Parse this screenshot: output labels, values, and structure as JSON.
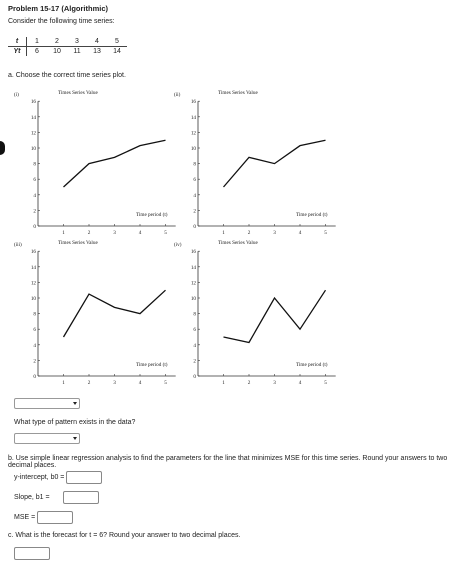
{
  "problem": {
    "title": "Problem 15-17 (Algorithmic)",
    "intro": "Consider the following time series:"
  },
  "series_table": {
    "t_label": "t",
    "y_label": "Yt",
    "t_values": [
      "1",
      "2",
      "3",
      "4",
      "5"
    ],
    "y_values": [
      "6",
      "10",
      "11",
      "13",
      "14"
    ]
  },
  "part_a": {
    "prompt": "a. Choose the correct time series plot.",
    "pattern_question": "What type of pattern exists in the data?"
  },
  "plots": [
    {
      "label": "(i)",
      "ylabel": "Times Series Value",
      "xlabel": "Time period (t)",
      "values": [
        5,
        8,
        8.8,
        10.3,
        11
      ]
    },
    {
      "label": "(ii)",
      "ylabel": "Times Series Value",
      "xlabel": "Time period (t)",
      "values": [
        5,
        8.8,
        8,
        10.3,
        11
      ]
    },
    {
      "label": "(iii)",
      "ylabel": "Times Series Value",
      "xlabel": "Time period (t)",
      "values": [
        5,
        10.5,
        8.8,
        8,
        11
      ]
    },
    {
      "label": "(iv)",
      "ylabel": "Times Series Value",
      "xlabel": "Time period (t)",
      "values": [
        5,
        4.3,
        10,
        6,
        11
      ]
    }
  ],
  "axis": {
    "y_ticks": [
      "0",
      "2",
      "4",
      "6",
      "8",
      "10",
      "12",
      "14",
      "16"
    ],
    "x_ticks": [
      "1",
      "2",
      "3",
      "4",
      "5"
    ],
    "ylim": [
      0,
      16
    ],
    "xlim": [
      0,
      5
    ]
  },
  "part_b": {
    "prompt": "b. Use simple linear regression analysis to find the parameters for the line that minimizes MSE for this time series. Round your answers to two decimal places.",
    "intercept_label": "y-intercept, b0 =",
    "slope_label": "Slope, b1 =",
    "mse_label": "MSE ="
  },
  "part_c": {
    "prompt": "c. What is the forecast for t = 6? Round your answer to two decimal places."
  }
}
